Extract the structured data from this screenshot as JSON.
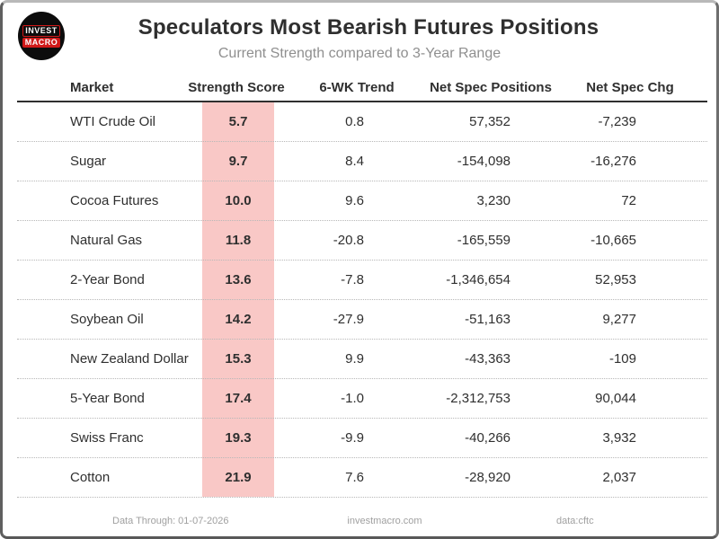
{
  "header": {
    "title": "Speculators Most Bearish Futures Positions",
    "subtitle": "Current Strength compared to 3-Year Range",
    "logo": {
      "line1": "INVEST",
      "line2": "MACRO"
    }
  },
  "table": {
    "columns": [
      "Market",
      "Strength Score",
      "6-WK Trend",
      "Net Spec Positions",
      "Net Spec Chg"
    ],
    "rows": [
      [
        "WTI Crude Oil",
        "5.7",
        "0.8",
        "57,352",
        "-7,239"
      ],
      [
        "Sugar",
        "9.7",
        "8.4",
        "-154,098",
        "-16,276"
      ],
      [
        "Cocoa Futures",
        "10.0",
        "9.6",
        "3,230",
        "72"
      ],
      [
        "Natural Gas",
        "11.8",
        "-20.8",
        "-165,559",
        "-10,665"
      ],
      [
        "2-Year Bond",
        "13.6",
        "-7.8",
        "-1,346,654",
        "52,953"
      ],
      [
        "Soybean Oil",
        "14.2",
        "-27.9",
        "-51,163",
        "9,277"
      ],
      [
        "New Zealand Dollar",
        "15.3",
        "9.9",
        "-43,363",
        "-109"
      ],
      [
        "5-Year Bond",
        "17.4",
        "-1.0",
        "-2,312,753",
        "90,044"
      ],
      [
        "Swiss Franc",
        "19.3",
        "-9.9",
        "-40,266",
        "3,932"
      ],
      [
        "Cotton",
        "21.9",
        "7.6",
        "-28,920",
        "2,037"
      ]
    ]
  },
  "footer": {
    "data_through": "Data Through: 01-07-2026",
    "site": "investmacro.com",
    "source": "data:cftc"
  },
  "colors": {
    "score_highlight": "#f9c8c6",
    "text": "#2f2f2f",
    "subtitle": "#8f8f8f",
    "footer_text": "#a0a0a0",
    "logo_red": "#d01818",
    "logo_black": "#0c0c0c"
  },
  "chart_data": {
    "type": "table",
    "title": "Speculators Most Bearish Futures Positions",
    "subtitle": "Current Strength compared to 3-Year Range",
    "columns": [
      "Market",
      "Strength Score",
      "6-WK Trend",
      "Net Spec Positions",
      "Net Spec Chg"
    ],
    "highlighted_column": "Strength Score",
    "rows": [
      [
        "WTI Crude Oil",
        5.7,
        0.8,
        57352,
        -7239
      ],
      [
        "Sugar",
        9.7,
        8.4,
        -154098,
        -16276
      ],
      [
        "Cocoa Futures",
        10.0,
        9.6,
        3230,
        72
      ],
      [
        "Natural Gas",
        11.8,
        -20.8,
        -165559,
        -10665
      ],
      [
        "2-Year Bond",
        13.6,
        -7.8,
        -1346654,
        52953
      ],
      [
        "Soybean Oil",
        14.2,
        -27.9,
        -51163,
        9277
      ],
      [
        "New Zealand Dollar",
        15.3,
        9.9,
        -43363,
        -109
      ],
      [
        "5-Year Bond",
        17.4,
        -1.0,
        -2312753,
        90044
      ],
      [
        "Swiss Franc",
        19.3,
        -9.9,
        -40266,
        3932
      ],
      [
        "Cotton",
        21.9,
        7.6,
        -28920,
        2037
      ]
    ]
  }
}
